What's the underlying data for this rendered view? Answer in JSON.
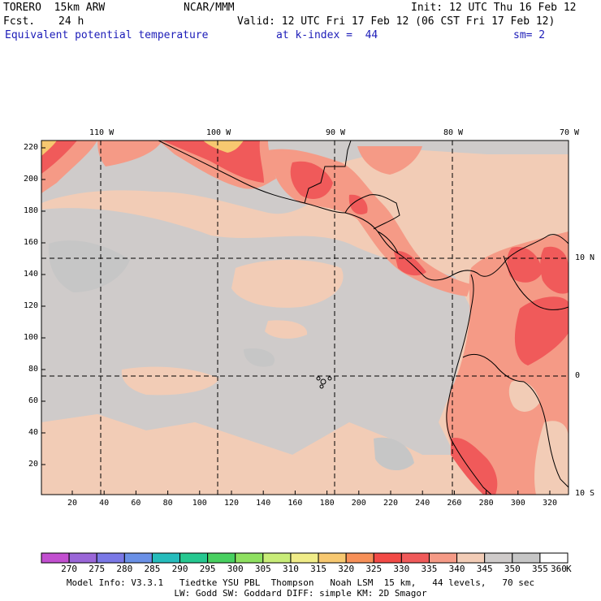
{
  "header": {
    "model": "TORERO  15km ARW",
    "org": "NCAR/MMM",
    "init": "Init: 12 UTC Thu 16 Feb 12",
    "fcst_label": "Fcst.",
    "fcst_value": "24 h",
    "valid": "Valid: 12 UTC Fri 17 Feb 12 (06 CST Fri 17 Feb 12)",
    "field": "Equivalent potential temperature",
    "level": "at k-index =  44",
    "smoothing": "sm= 2"
  },
  "map": {
    "lon_labels": [
      "110 W",
      "100 W",
      "90 W",
      "80 W",
      "70 W"
    ],
    "lat_labels": [
      "10 N",
      "0",
      "10 S"
    ],
    "y_ticks": [
      "220",
      "200",
      "180",
      "160",
      "140",
      "120",
      "100",
      "80",
      "60",
      "40",
      "20"
    ],
    "x_ticks": [
      "20",
      "40",
      "60",
      "80",
      "100",
      "120",
      "140",
      "160",
      "180",
      "200",
      "220",
      "240",
      "260",
      "280",
      "300",
      "320"
    ]
  },
  "colorbar": {
    "labels": [
      "270",
      "275",
      "280",
      "285",
      "290",
      "295",
      "300",
      "305",
      "310",
      "315",
      "320",
      "325",
      "330",
      "335",
      "340",
      "345",
      "350",
      "355",
      "360"
    ],
    "unit": "K",
    "colors": [
      "#c24fd0",
      "#9a66d8",
      "#7a78e6",
      "#6a90e6",
      "#26bcbc",
      "#26c890",
      "#48d060",
      "#8ee060",
      "#c8ec78",
      "#f0ec88",
      "#f7c870",
      "#f79058",
      "#f24a46",
      "#f05a5a",
      "#f59a86",
      "#f2ccb6",
      "#cfcbca",
      "#c6c6c6",
      "#ffffff"
    ]
  },
  "footer": {
    "line1": "Model Info: V3.3.1   Tiedtke YSU PBL  Thompson   Noah LSM  15 km,   44 levels,   70 sec",
    "line2": "LW: Godd SW: Goddard DIFF: simple KM: 2D Smagor"
  },
  "colors": {
    "ocean_warm": "#f2ccb6",
    "ocean_cool": "#cfcbca",
    "land_hot": "#f05a5a",
    "land_warm": "#f59a86",
    "header_blue": "#1c1cb8"
  }
}
